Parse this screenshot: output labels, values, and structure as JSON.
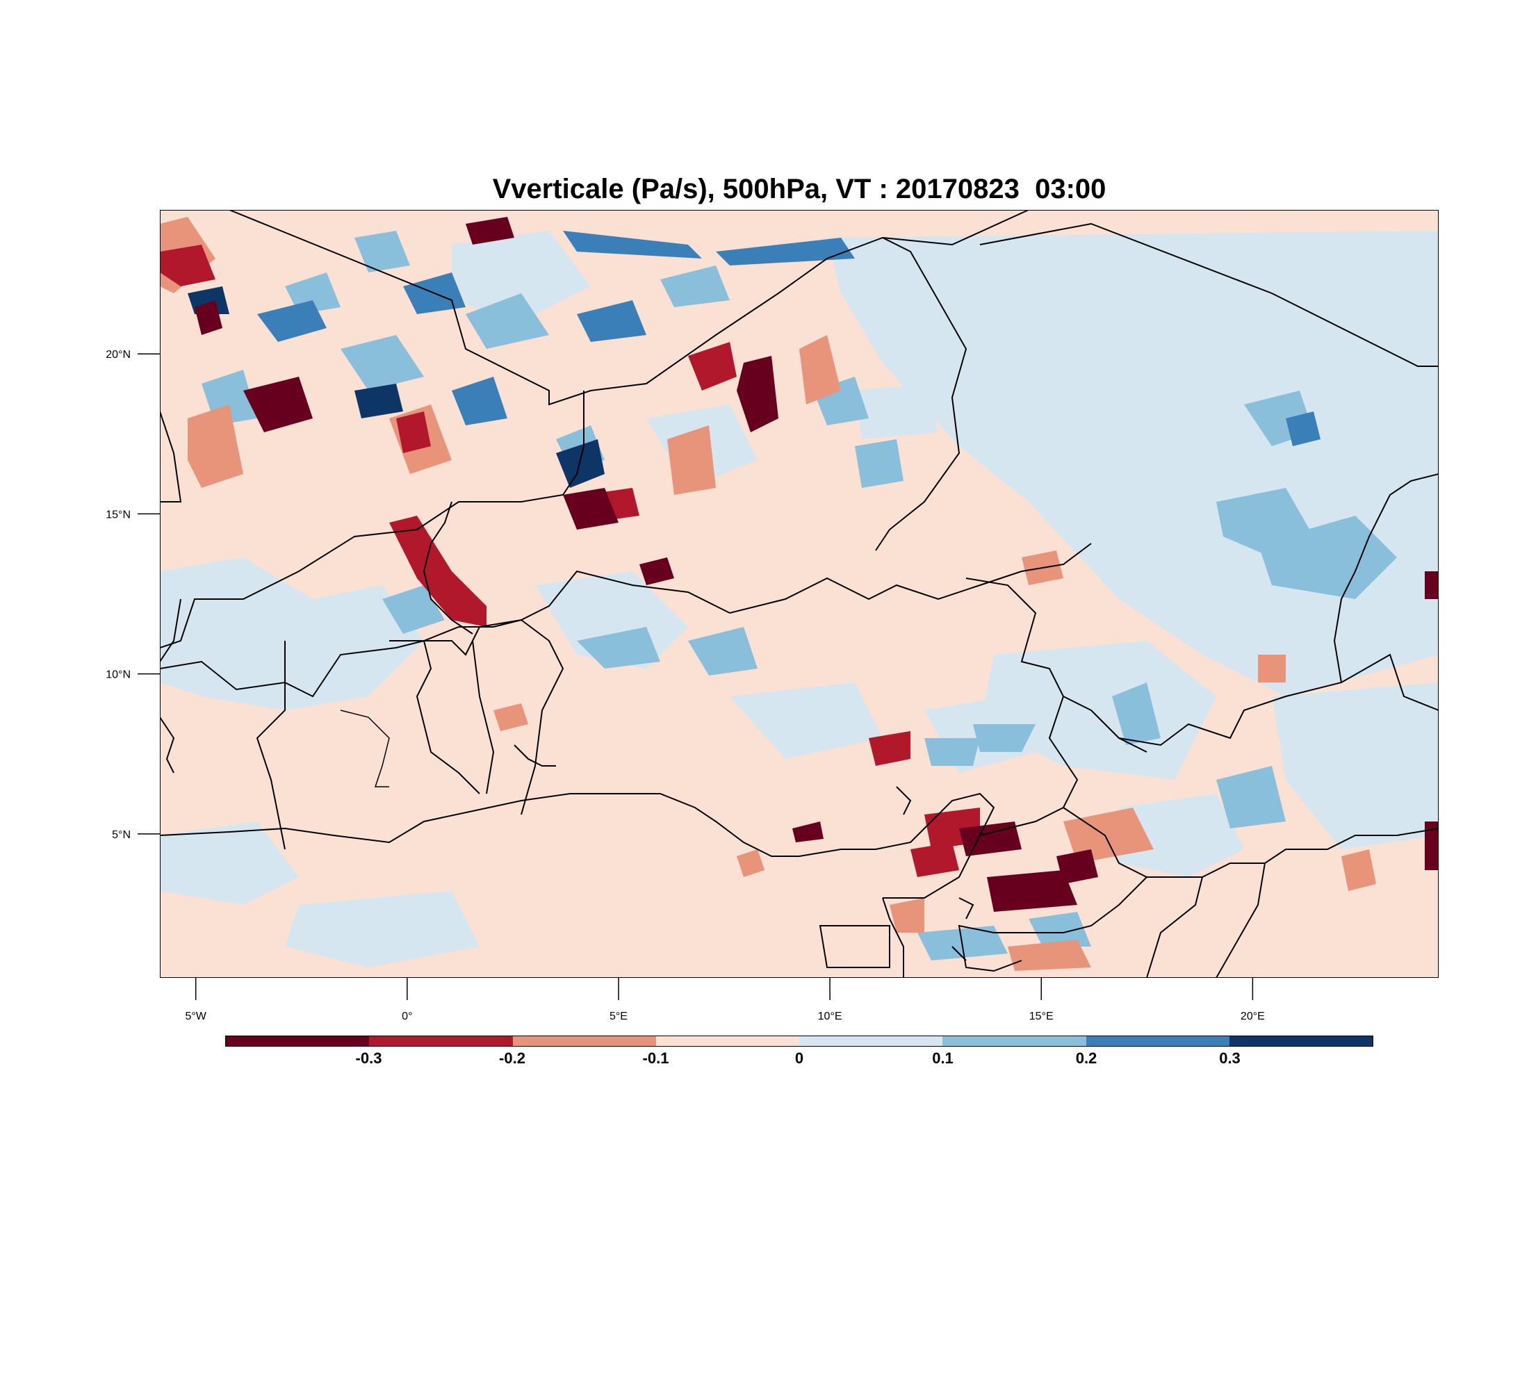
{
  "title": "Vverticale (Pa/s), 500hPa, VT : 20170823  03:00",
  "map": {
    "extent": {
      "lon_min": -5.85,
      "lon_max": 24.4,
      "lat_min": 0.5,
      "lat_max": 24.5
    },
    "x_ticks": [
      {
        "lon": -5,
        "label": "5°W"
      },
      {
        "lon": 0,
        "label": "0°"
      },
      {
        "lon": 5,
        "label": "5°E"
      },
      {
        "lon": 10,
        "label": "10°E"
      },
      {
        "lon": 15,
        "label": "15°E"
      },
      {
        "lon": 20,
        "label": "20°E"
      }
    ],
    "y_ticks": [
      {
        "lat": 5,
        "label": "5°N"
      },
      {
        "lat": 10,
        "label": "10°N"
      },
      {
        "lat": 15,
        "label": "15°N"
      },
      {
        "lat": 20,
        "label": "20°N"
      }
    ],
    "field": "vertical velocity (Pa/s), 500hPa",
    "colors": {
      "neg_strong": "#67001f",
      "neg_mid": "#b2182b",
      "neg_weak": "#e8947a",
      "neg_faint": "#fbe0d4",
      "pos_faint": "#d5e6f0",
      "pos_weak": "#8abfdc",
      "pos_mid": "#3a7fb8",
      "pos_strong": "#0d3565"
    }
  },
  "colorbar": {
    "colors": [
      "#67001f",
      "#b2182b",
      "#e8947a",
      "#fbe0d4",
      "#d5e6f0",
      "#8abfdc",
      "#3a7fb8",
      "#0d3565"
    ],
    "labels": [
      "-0.3",
      "-0.2",
      "-0.1",
      "0",
      "0.1",
      "0.2",
      "0.3"
    ]
  }
}
